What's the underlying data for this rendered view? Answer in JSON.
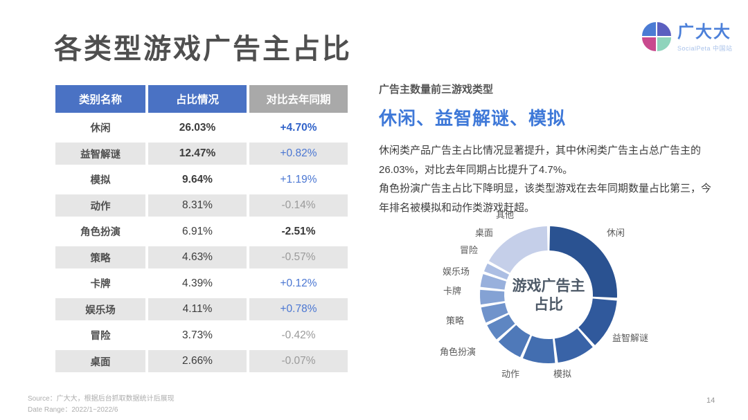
{
  "page": {
    "title": "各类型游戏广告主占比",
    "page_number": "14",
    "footer": {
      "source": "Source：广大大，根据后台抓取数据统计后展现",
      "date_range": "Date Range：2022/1~2022/6"
    }
  },
  "logo": {
    "name": "广大大",
    "subtitle": "SocialPeta 中国站",
    "mark_colors": {
      "tl": "#4b7bd4",
      "tr": "#5b5fc0",
      "bl": "#c94a8e",
      "br": "#8fd4bc"
    }
  },
  "colors": {
    "header_blue": "#4a72c4",
    "header_gray": "#a9a9a9",
    "row_gray": "#e6e6e6",
    "accent_blue": "#3e78d8",
    "positive_blue": "#3163c9",
    "negative_gray": "#9a9a9a"
  },
  "table": {
    "headers": [
      "类别名称",
      "占比情况",
      "对比去年同期"
    ],
    "rows": [
      {
        "category": "休闲",
        "share": "26.03%",
        "share_bold": true,
        "yoy": "+4.70%",
        "yoy_style": "blue-bold"
      },
      {
        "category": "益智解谜",
        "share": "12.47%",
        "share_bold": true,
        "yoy": "+0.82%",
        "yoy_style": "blue"
      },
      {
        "category": "模拟",
        "share": "9.64%",
        "share_bold": true,
        "yoy": "+1.19%",
        "yoy_style": "blue"
      },
      {
        "category": "动作",
        "share": "8.31%",
        "share_bold": false,
        "yoy": "-0.14%",
        "yoy_style": "gray"
      },
      {
        "category": "角色扮演",
        "share": "6.91%",
        "share_bold": false,
        "yoy": "-2.51%",
        "yoy_style": "dark-bold"
      },
      {
        "category": "策略",
        "share": "4.63%",
        "share_bold": false,
        "yoy": "-0.57%",
        "yoy_style": "gray"
      },
      {
        "category": "卡牌",
        "share": "4.39%",
        "share_bold": false,
        "yoy": "+0.12%",
        "yoy_style": "blue"
      },
      {
        "category": "娱乐场",
        "share": "4.11%",
        "share_bold": false,
        "yoy": "+0.78%",
        "yoy_style": "blue"
      },
      {
        "category": "冒险",
        "share": "3.73%",
        "share_bold": false,
        "yoy": "-0.42%",
        "yoy_style": "gray"
      },
      {
        "category": "桌面",
        "share": "2.66%",
        "share_bold": false,
        "yoy": "-0.07%",
        "yoy_style": "gray"
      }
    ]
  },
  "insight": {
    "kicker": "广告主数量前三游戏类型",
    "headline": "休闲、益智解谜、模拟",
    "paragraphs": [
      "休闲类产品广告主占比情况显著提升，其中休闲类广告主占总广告主的26.03%，对比去年同期占比提升了4.7%。",
      "角色扮演广告主占比下降明显，该类型游戏在去年同期数量占比第三，今年排名被模拟和动作类游戏赶超。"
    ]
  },
  "chart_data": {
    "type": "pie",
    "donut": true,
    "title": "游戏广告主占比",
    "center_label_lines": [
      "游戏广告主",
      "占比"
    ],
    "start_angle_deg": 0,
    "direction": "clockwise",
    "categories": [
      "休闲",
      "益智解谜",
      "模拟",
      "动作",
      "角色扮演",
      "策略",
      "卡牌",
      "娱乐场",
      "冒险",
      "桌面",
      "其他"
    ],
    "values": [
      26.03,
      12.47,
      9.64,
      8.31,
      6.91,
      4.63,
      4.39,
      4.11,
      3.73,
      2.66,
      17.12
    ],
    "colors": [
      "#2a5291",
      "#30599c",
      "#3963a7",
      "#436eb0",
      "#4f79b9",
      "#5e86c2",
      "#7093cb",
      "#84a2d4",
      "#98b0dc",
      "#acbee3",
      "#c5cfe9"
    ]
  }
}
